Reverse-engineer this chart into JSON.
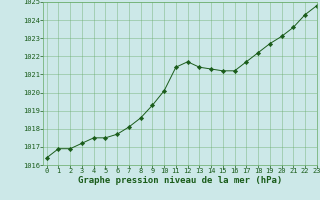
{
  "x": [
    0,
    1,
    2,
    3,
    4,
    5,
    6,
    7,
    8,
    9,
    10,
    11,
    12,
    13,
    14,
    15,
    16,
    17,
    18,
    19,
    20,
    21,
    22,
    23
  ],
  "y": [
    1016.4,
    1016.9,
    1016.9,
    1017.2,
    1017.5,
    1017.5,
    1017.7,
    1018.1,
    1018.6,
    1019.3,
    1020.1,
    1021.4,
    1021.7,
    1021.4,
    1021.3,
    1021.2,
    1021.2,
    1021.7,
    1022.2,
    1022.7,
    1023.1,
    1023.6,
    1024.3,
    1024.8
  ],
  "ylim": [
    1016,
    1025
  ],
  "xlim": [
    -0.3,
    23
  ],
  "yticks": [
    1016,
    1017,
    1018,
    1019,
    1020,
    1021,
    1022,
    1023,
    1024,
    1025
  ],
  "xticks": [
    0,
    1,
    2,
    3,
    4,
    5,
    6,
    7,
    8,
    9,
    10,
    11,
    12,
    13,
    14,
    15,
    16,
    17,
    18,
    19,
    20,
    21,
    22,
    23
  ],
  "xlabel": "Graphe pression niveau de la mer (hPa)",
  "line_color": "#1a5c1a",
  "marker_color": "#1a5c1a",
  "bg_color": "#cce8e8",
  "grid_color": "#66aa66",
  "tick_label_color": "#1a5c1a",
  "xlabel_color": "#1a5c1a",
  "tick_fontsize": 5.0,
  "xlabel_fontsize": 6.5,
  "marker_size": 2.2,
  "line_width": 0.7
}
